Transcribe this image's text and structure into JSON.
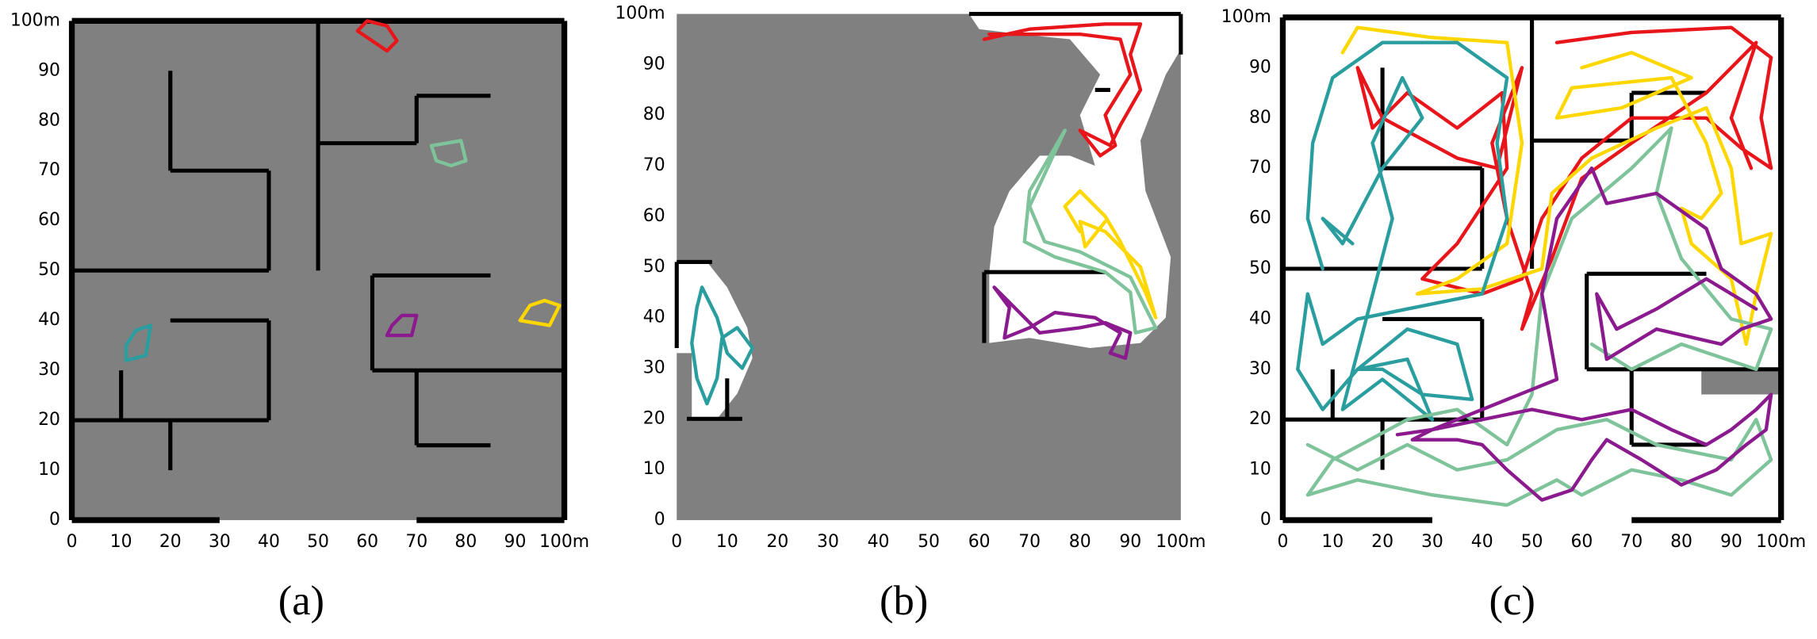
{
  "panels": [
    {
      "label": "(a)",
      "xticks": [
        0,
        10,
        20,
        30,
        40,
        50,
        60,
        70,
        80,
        90,
        {
          "value": 100,
          "label": "100m"
        }
      ],
      "yticks": [
        0,
        10,
        20,
        30,
        40,
        50,
        60,
        70,
        80,
        90,
        {
          "value": 100,
          "label": "100m"
        }
      ]
    },
    {
      "label": "(b)",
      "xticks": [
        0,
        10,
        20,
        30,
        40,
        50,
        60,
        70,
        80,
        90,
        {
          "value": 100,
          "label": "100m"
        }
      ],
      "yticks": [
        0,
        10,
        20,
        30,
        40,
        50,
        60,
        70,
        80,
        90,
        {
          "value": 100,
          "label": "100m"
        }
      ]
    },
    {
      "label": "(c)",
      "xticks": [
        0,
        10,
        20,
        30,
        40,
        50,
        60,
        70,
        80,
        90,
        {
          "value": 100,
          "label": "100m"
        }
      ],
      "yticks": [
        0,
        10,
        20,
        30,
        40,
        50,
        60,
        70,
        80,
        90,
        {
          "value": 100,
          "label": "100m"
        }
      ]
    }
  ]
}
